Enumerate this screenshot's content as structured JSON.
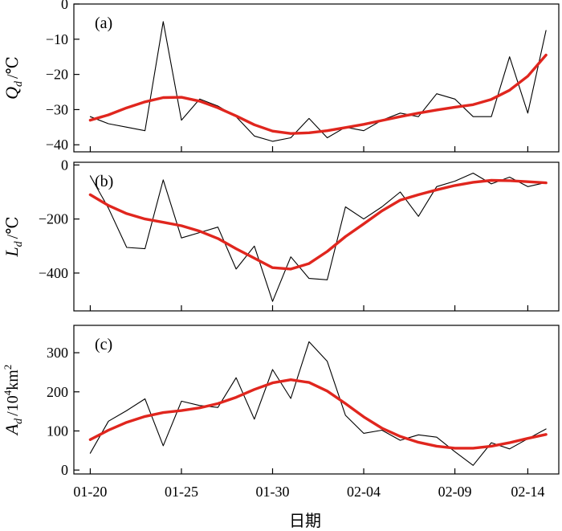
{
  "chart_data": [
    {
      "panel": "(a)",
      "type": "line",
      "ylabel": "Q_d /°C",
      "ylabel_main": "Q",
      "ylabel_sub": "d",
      "ylabel_unit": "/℃",
      "ylim": [
        -42,
        0
      ],
      "yticks": [
        0,
        -10,
        -20,
        -30,
        -40
      ],
      "ytick_labels": [
        "0",
        "−10",
        "−20",
        "−30",
        "−40"
      ],
      "x": [
        0,
        1,
        2,
        3,
        4,
        5,
        6,
        7,
        8,
        9,
        10,
        11,
        12,
        13,
        14,
        15,
        16,
        17,
        18,
        19,
        20,
        21,
        22,
        23,
        24,
        25
      ],
      "series": [
        {
          "role": "raw",
          "color": "#000000",
          "values": [
            -32,
            -34,
            -35,
            -36,
            -5,
            -33,
            -27,
            -29,
            -32,
            -37.5,
            -39,
            -38,
            -32.5,
            -38,
            -35,
            -36,
            -33,
            -31,
            -32,
            -25.5,
            -27,
            -32,
            -32,
            -15,
            -31,
            -7.5
          ]
        },
        {
          "role": "smoothed",
          "color": "#e0261e",
          "values": [
            -33,
            -31.5,
            -29.5,
            -27.8,
            -26.6,
            -26.5,
            -27.6,
            -29.5,
            -31.8,
            -34.3,
            -36.1,
            -36.8,
            -36.6,
            -36,
            -35.1,
            -34.2,
            -33.1,
            -32,
            -31,
            -30.1,
            -29.3,
            -28.6,
            -27.1,
            -24.5,
            -20.5,
            -14.5
          ]
        }
      ]
    },
    {
      "panel": "(b)",
      "type": "line",
      "ylabel": "L_d /°C",
      "ylabel_main": "L",
      "ylabel_sub": "d",
      "ylabel_unit": "/℃",
      "ylim": [
        -540,
        10
      ],
      "yticks": [
        0,
        -200,
        -400
      ],
      "ytick_labels": [
        "0",
        "−200",
        "−400"
      ],
      "x": [
        0,
        1,
        2,
        3,
        4,
        5,
        6,
        7,
        8,
        9,
        10,
        11,
        12,
        13,
        14,
        15,
        16,
        17,
        18,
        19,
        20,
        21,
        22,
        23,
        24,
        25
      ],
      "series": [
        {
          "role": "raw",
          "color": "#000000",
          "values": [
            -40,
            -160,
            -305,
            -310,
            -55,
            -270,
            -250,
            -230,
            -385,
            -300,
            -505,
            -340,
            -420,
            -425,
            -155,
            -200,
            -155,
            -100,
            -190,
            -80,
            -60,
            -30,
            -70,
            -45,
            -80,
            -65
          ]
        },
        {
          "role": "smoothed",
          "color": "#e0261e",
          "values": [
            -110,
            -150,
            -180,
            -200,
            -212,
            -225,
            -245,
            -272,
            -310,
            -345,
            -380,
            -385,
            -365,
            -320,
            -265,
            -218,
            -170,
            -130,
            -110,
            -92,
            -76,
            -64,
            -57,
            -58,
            -62,
            -66
          ]
        }
      ]
    },
    {
      "panel": "(c)",
      "type": "line",
      "ylabel": "A_d /10^4km^2",
      "ylabel_main": "A",
      "ylabel_sub": "d",
      "ylabel_unit": "/10",
      "ylabel_unit_sup": "4",
      "ylabel_unit2": "km",
      "ylabel_unit2_sup": "2",
      "ylim": [
        -10,
        370
      ],
      "yticks": [
        300,
        200,
        100,
        0
      ],
      "ytick_labels": [
        "300",
        "200",
        "100",
        "0"
      ],
      "x": [
        0,
        1,
        2,
        3,
        4,
        5,
        6,
        7,
        8,
        9,
        10,
        11,
        12,
        13,
        14,
        15,
        16,
        17,
        18,
        19,
        20,
        21,
        22,
        23,
        24,
        25
      ],
      "series": [
        {
          "role": "raw",
          "color": "#000000",
          "values": [
            43,
            125,
            152,
            182,
            62,
            176,
            165,
            160,
            236,
            130,
            257,
            183,
            328,
            278,
            140,
            94,
            102,
            76,
            90,
            84,
            47,
            12,
            70,
            54,
            80,
            105
          ]
        },
        {
          "role": "smoothed",
          "color": "#e0261e",
          "values": [
            78,
            102,
            122,
            137,
            147,
            152,
            159,
            170,
            186,
            206,
            223,
            231,
            224,
            202,
            170,
            136,
            107,
            86,
            71,
            61,
            56,
            56,
            61,
            70,
            81,
            91
          ]
        }
      ]
    }
  ],
  "x_axis": {
    "xlabel": "日期",
    "xlim": [
      -0.9,
      25.7
    ],
    "tick_positions": [
      0,
      5,
      10,
      15,
      20,
      24
    ],
    "tick_labels": [
      "01-20",
      "01-25",
      "01-30",
      "02-04",
      "02-09",
      "02-14"
    ]
  }
}
